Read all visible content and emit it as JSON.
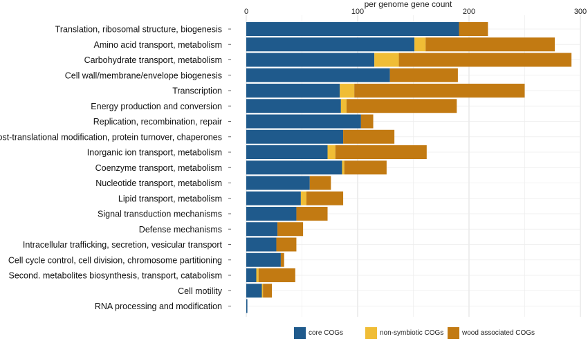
{
  "chart_data": {
    "type": "bar",
    "orientation": "horizontal",
    "stacked": true,
    "x_axis_position": "top",
    "xlabel": "per genome gene count",
    "xlim": [
      0,
      300
    ],
    "xticks": [
      0,
      100,
      200,
      300
    ],
    "grid": true,
    "legend_position": "bottom",
    "categories": [
      "Translation, ribosomal structure, biogenesis",
      "Amino acid transport, metabolism",
      "Carbohydrate transport, metabolism",
      "Cell wall/membrane/envelope biogenesis",
      "Transcription",
      "Energy production and conversion",
      "Replication, recombination, repair",
      "Post-translational modification, protein turnover, chaperones",
      "Inorganic ion transport, metabolism",
      "Coenzyme transport, metabolism",
      "Nucleotide transport, metabolism",
      "Lipid transport, metabolism",
      "Signal transduction mechanisms",
      "Defense mechanisms",
      "Intracellular trafficking, secretion, vesicular transport",
      "Cell cycle control, cell division, chromosome partitioning",
      "Second. metabolites biosynthesis, transport, catabolism",
      "Cell motility",
      "RNA processing and modification"
    ],
    "series": [
      {
        "name": "core COGs",
        "color": "#1f5a8c",
        "values": [
          191,
          151,
          115,
          129,
          84,
          85,
          103,
          87,
          73,
          86,
          57,
          49,
          45,
          28,
          27,
          31,
          9,
          14,
          1
        ]
      },
      {
        "name": "non-symbiotic COGs",
        "color": "#f0bd36",
        "values": [
          0,
          10,
          22,
          0,
          13,
          5,
          0,
          0,
          7,
          2,
          0,
          5,
          0,
          0,
          0,
          0,
          2,
          1,
          0
        ]
      },
      {
        "name": "wood associated COGs",
        "color": "#c27a12",
        "values": [
          26,
          116,
          155,
          61,
          153,
          99,
          11,
          46,
          82,
          38,
          19,
          33,
          28,
          23,
          18,
          3,
          33,
          8,
          0
        ]
      }
    ]
  }
}
